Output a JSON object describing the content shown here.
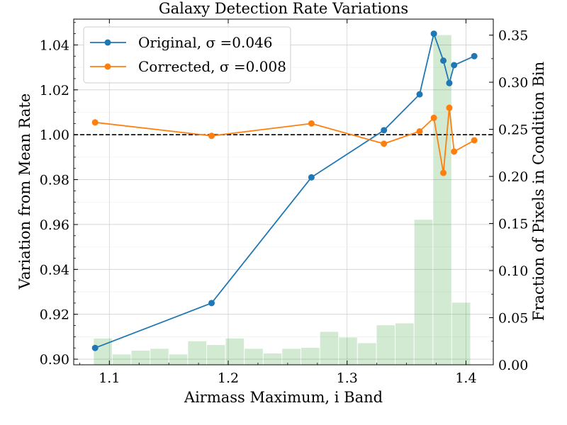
{
  "chart_data": {
    "type": "line",
    "title": "Galaxy Detection Rate Variations",
    "xlabel": "Airmass Maximum, i Band",
    "ylabel": "Variation from Mean Rate",
    "y2label": "Fraction of Pixels in Condition Bin",
    "xlim": [
      1.07,
      1.423
    ],
    "ylim": [
      0.8975,
      1.0515
    ],
    "y2lim": [
      0.0,
      0.367
    ],
    "xticks": [
      1.1,
      1.2,
      1.3,
      1.4
    ],
    "xtick_labels": [
      "1.1",
      "1.2",
      "1.3",
      "1.4"
    ],
    "yticks": [
      0.9,
      0.92,
      0.94,
      0.96,
      0.98,
      1.0,
      1.02,
      1.04
    ],
    "ytick_labels": [
      "0.90",
      "0.92",
      "0.94",
      "0.96",
      "0.98",
      "1.00",
      "1.02",
      "1.04"
    ],
    "y2ticks": [
      0.0,
      0.05,
      0.1,
      0.15,
      0.2,
      0.25,
      0.3,
      0.35
    ],
    "y2tick_labels": [
      "0.00",
      "0.05",
      "0.10",
      "0.15",
      "0.20",
      "0.25",
      "0.30",
      "0.35"
    ],
    "grid": true,
    "legend_position": "top-left",
    "reference_line": {
      "y": 1.0,
      "style": "dashed",
      "color": "#000000"
    },
    "series": [
      {
        "name": "Original, σ =0.046",
        "color": "#1f77b4",
        "x": [
          1.088,
          1.186,
          1.27,
          1.331,
          1.361,
          1.373,
          1.381,
          1.386,
          1.39,
          1.407
        ],
        "y": [
          0.905,
          0.925,
          0.981,
          1.002,
          1.018,
          1.045,
          1.033,
          1.023,
          1.031,
          1.035
        ]
      },
      {
        "name": "Corrected, σ =0.008",
        "color": "#ff7f0e",
        "x": [
          1.088,
          1.186,
          1.27,
          1.331,
          1.361,
          1.373,
          1.381,
          1.386,
          1.39,
          1.407
        ],
        "y": [
          1.0055,
          0.9995,
          1.005,
          0.996,
          1.0015,
          1.0075,
          0.983,
          1.012,
          0.9925,
          0.9975
        ]
      }
    ],
    "histogram": {
      "axis": "right",
      "color": "#2ca02c",
      "opacity": 0.22,
      "bin_edges": [
        1.0866,
        1.1024,
        1.1183,
        1.1342,
        1.15,
        1.1659,
        1.1818,
        1.1976,
        1.2135,
        1.2294,
        1.2452,
        1.2611,
        1.277,
        1.2928,
        1.3087,
        1.3246,
        1.3404,
        1.3563,
        1.3722,
        1.388,
        1.4039
      ],
      "values": [
        0.028,
        0.011,
        0.015,
        0.017,
        0.011,
        0.025,
        0.021,
        0.028,
        0.017,
        0.012,
        0.017,
        0.018,
        0.035,
        0.029,
        0.023,
        0.042,
        0.044,
        0.154,
        0.35,
        0.066
      ]
    }
  }
}
